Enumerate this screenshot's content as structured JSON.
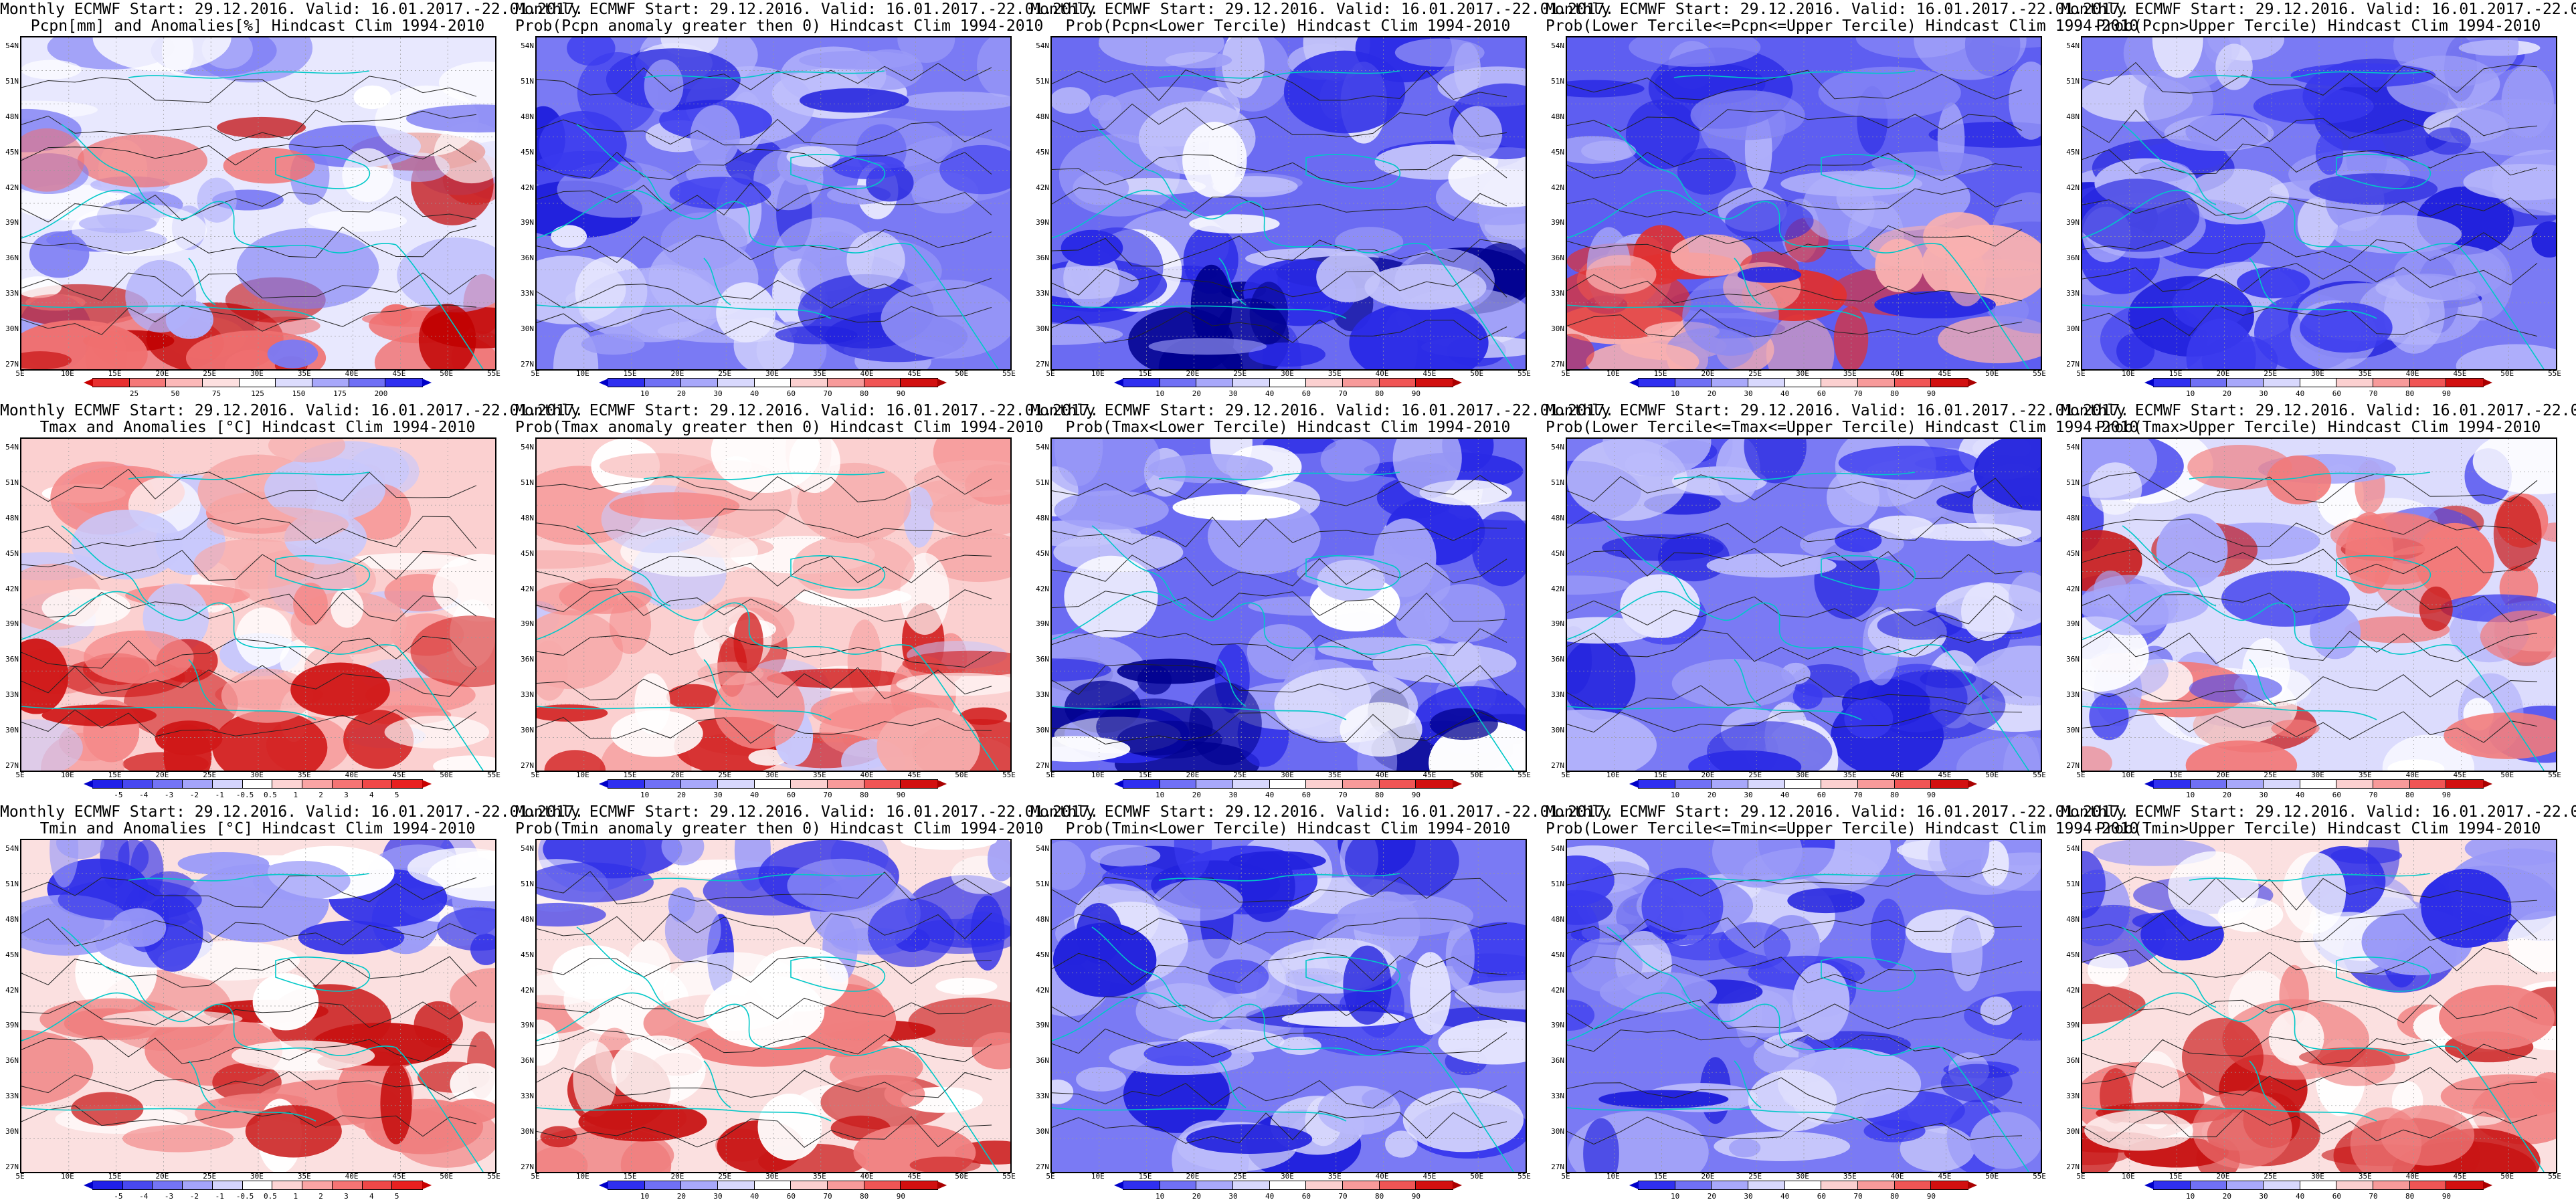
{
  "header_line": "Monthly ECMWF Start: 29.12.2016. Valid: 16.01.2017.-22.01.2017.",
  "lat_labels": [
    "54N",
    "51N",
    "48N",
    "45N",
    "42N",
    "39N",
    "36N",
    "33N",
    "30N",
    "27N"
  ],
  "lon_labels": [
    "5E",
    "10E",
    "15E",
    "20E",
    "25E",
    "30E",
    "35E",
    "40E",
    "45E",
    "50E",
    "55E"
  ],
  "colorbars": {
    "anomaly_pct": [
      "25",
      "50",
      "75",
      "125",
      "150",
      "175",
      "200"
    ],
    "probability": [
      "10",
      "20",
      "30",
      "40",
      "60",
      "70",
      "80",
      "90"
    ],
    "temp_anomaly": [
      "-5",
      "-4",
      "-3",
      "-2",
      "-1",
      "-0.5",
      "0.5",
      "1",
      "2",
      "3",
      "4",
      "5"
    ]
  },
  "colors": {
    "cyan_coast": "#00c8c8",
    "contour": "#222222",
    "deep_blue": "#0000c0",
    "deep_red": "#c00000"
  },
  "rows": [
    {
      "panels": [
        {
          "subtitle": "Pcpn[mm] and Anomalies[%] Hindcast Clim 1994-2010",
          "scheme": "wet",
          "cbar": "anomaly_pct"
        },
        {
          "subtitle": "Prob(Pcpn anomaly greater then 0) Hindcast Clim 1994-2010",
          "scheme": "blue",
          "cbar": "probability"
        },
        {
          "subtitle": "Prob(Pcpn<Lower Tercile) Hindcast Clim 1994-2010",
          "scheme": "blue_white",
          "cbar": "probability"
        },
        {
          "subtitle": "Prob(Lower Tercile<=Pcpn<=Upper Tercile) Hindcast Clim 1994-2010",
          "scheme": "blue_red_south",
          "cbar": "probability"
        },
        {
          "subtitle": "Prob(Pcpn>Upper Tercile) Hindcast Clim 1994-2010",
          "scheme": "blue",
          "cbar": "probability"
        }
      ]
    },
    {
      "panels": [
        {
          "subtitle": "Tmax and Anomalies [°C] Hindcast Clim 1994-2010",
          "scheme": "red_south",
          "cbar": "temp_anomaly"
        },
        {
          "subtitle": "Prob(Tmax anomaly greater then 0) Hindcast Clim 1994-2010",
          "scheme": "red_south",
          "cbar": "probability"
        },
        {
          "subtitle": "Prob(Tmax<Lower Tercile) Hindcast Clim 1994-2010",
          "scheme": "blue_white",
          "cbar": "probability"
        },
        {
          "subtitle": "Prob(Lower Tercile<=Tmax<=Upper Tercile) Hindcast Clim 1994-2010",
          "scheme": "blue",
          "cbar": "probability"
        },
        {
          "subtitle": "Prob(Tmax>Upper Tercile) Hindcast Clim 1994-2010",
          "scheme": "blue_red_se",
          "cbar": "probability"
        }
      ]
    },
    {
      "panels": [
        {
          "subtitle": "Tmin and Anomalies [°C] Hindcast Clim 1994-2010",
          "scheme": "blue_north_red",
          "cbar": "temp_anomaly"
        },
        {
          "subtitle": "Prob(Tmin anomaly greater then 0) Hindcast Clim 1994-2010",
          "scheme": "blue_north_red",
          "cbar": "probability"
        },
        {
          "subtitle": "Prob(Tmin<Lower Tercile) Hindcast Clim 1994-2010",
          "scheme": "blue",
          "cbar": "probability"
        },
        {
          "subtitle": "Prob(Lower Tercile<=Tmin<=Upper Tercile) Hindcast Clim 1994-2010",
          "scheme": "blue",
          "cbar": "probability"
        },
        {
          "subtitle": "Prob(Tmin>Upper Tercile) Hindcast Clim 1994-2010",
          "scheme": "blue_north_red",
          "cbar": "probability"
        }
      ]
    }
  ]
}
